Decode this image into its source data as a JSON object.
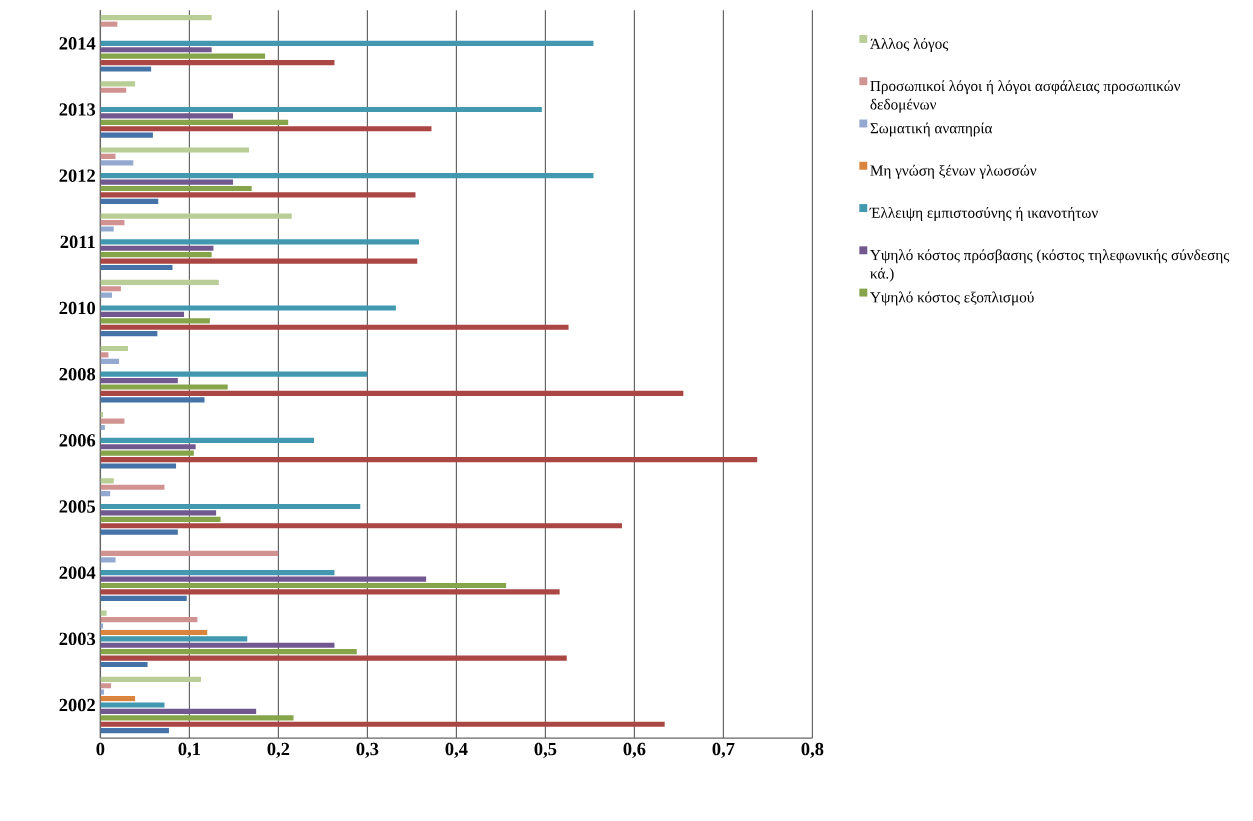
{
  "chart_data": {
    "type": "bar",
    "orientation": "horizontal",
    "categories": [
      "2014",
      "2013",
      "2012",
      "2011",
      "2010",
      "2008",
      "2006",
      "2005",
      "2004",
      "2003",
      "2002"
    ],
    "series": [
      {
        "name": "Άλλος λόγος",
        "color": "#b9cd96",
        "values": [
          0.125,
          0.039,
          0.167,
          0.215,
          0.133,
          0.031,
          0.003,
          0.015,
          null,
          0.007,
          0.113
        ]
      },
      {
        "name": "Προσωπικοί λόγοι ή λόγοι ασφάλειας προσωπικών δεδομένων",
        "color": "#d19392",
        "values": [
          0.019,
          0.029,
          0.017,
          0.027,
          0.023,
          0.009,
          0.027,
          0.072,
          0.2,
          0.109,
          0.012
        ]
      },
      {
        "name": "Σωματική αναπηρία",
        "color": "#93a9cf",
        "values": [
          null,
          null,
          0.037,
          0.015,
          0.013,
          0.021,
          0.005,
          0.011,
          0.017,
          0.003,
          0.004
        ]
      },
      {
        "name": "Μη γνώση ξένων γλωσσών",
        "color": "#db843d",
        "values": [
          null,
          null,
          null,
          null,
          null,
          null,
          null,
          null,
          null,
          0.12,
          0.039
        ]
      },
      {
        "name": "Έλλειψη εμπιστοσύνης ή ικανοτήτων",
        "color": "#4198af",
        "values": [
          0.554,
          0.496,
          0.554,
          0.358,
          0.332,
          0.3,
          0.24,
          0.292,
          0.263,
          0.165,
          0.072
        ]
      },
      {
        "name": "Υψηλό κόστος πρόσβασης (κόστος τηλεφωνικής σύνδεσης κά.)",
        "color": "#71588f",
        "values": [
          0.125,
          0.149,
          0.149,
          0.127,
          0.094,
          0.087,
          0.107,
          0.13,
          0.366,
          0.263,
          0.175
        ]
      },
      {
        "name": "Υψηλό κόστος εξοπλισμού",
        "color": "#86a44a",
        "values": [
          0.185,
          0.211,
          0.17,
          0.125,
          0.123,
          0.143,
          0.105,
          0.135,
          0.456,
          0.288,
          0.217
        ]
      },
      {
        "color": "#aa4643",
        "values": [
          0.263,
          0.372,
          0.354,
          0.356,
          0.526,
          0.655,
          0.738,
          0.586,
          0.516,
          0.524,
          0.634
        ]
      },
      {
        "color": "#4572a7",
        "values": [
          0.057,
          0.059,
          0.065,
          0.081,
          0.064,
          0.117,
          0.085,
          0.087,
          0.097,
          0.053,
          0.077
        ]
      }
    ],
    "xlim": [
      0,
      0.8
    ],
    "xticks": [
      {
        "value": 0,
        "label": "0"
      },
      {
        "value": 0.1,
        "label": "0,1"
      },
      {
        "value": 0.2,
        "label": "0,2"
      },
      {
        "value": 0.3,
        "label": "0,3"
      },
      {
        "value": 0.4,
        "label": "0,4"
      },
      {
        "value": 0.5,
        "label": "0,5"
      },
      {
        "value": 0.6,
        "label": "0,6"
      },
      {
        "value": 0.7,
        "label": "0,7"
      },
      {
        "value": 0.8,
        "label": "0,8"
      }
    ],
    "grid": "x",
    "legend": "right"
  }
}
